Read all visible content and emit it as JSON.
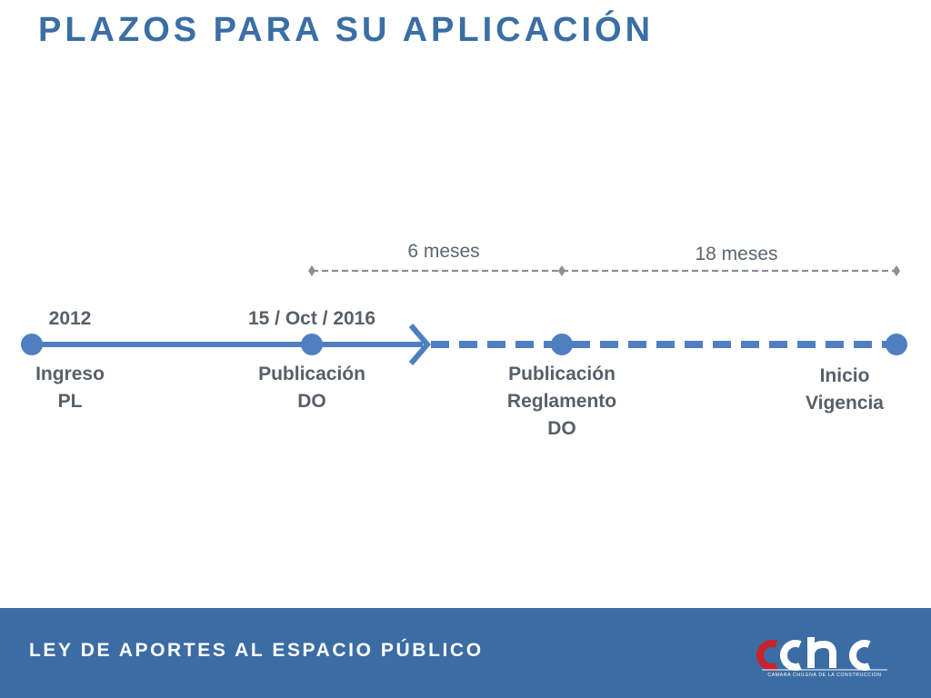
{
  "slide": {
    "title": "PLAZOS PARA SU APLICACIÓN",
    "footer_title": "LEY DE APORTES AL ESPACIO PÚBLICO",
    "logo": {
      "wordmark": "cchc",
      "caption": "CAMARA CHILENA DE LA CONSTRUCCION"
    }
  },
  "timeline": {
    "milestones": [
      {
        "date": "2012",
        "label": [
          "Ingreso",
          "PL"
        ]
      },
      {
        "date": "15 / Oct / 2016",
        "label": [
          "Publicación",
          "DO"
        ]
      },
      {
        "date": "",
        "label": [
          "Publicación",
          "Reglamento",
          "DO"
        ]
      },
      {
        "date": "",
        "label": [
          "Inicio",
          "Vigencia"
        ]
      }
    ],
    "durations": [
      {
        "label": "6 meses"
      },
      {
        "label": "18 meses"
      }
    ]
  },
  "colors": {
    "accent": "#3a6ea5",
    "timeline": "#4f7fc0",
    "dashed_bracket": "#8a8f96",
    "footer_bg": "#3b6ca3",
    "logo_red": "#c8232c"
  }
}
